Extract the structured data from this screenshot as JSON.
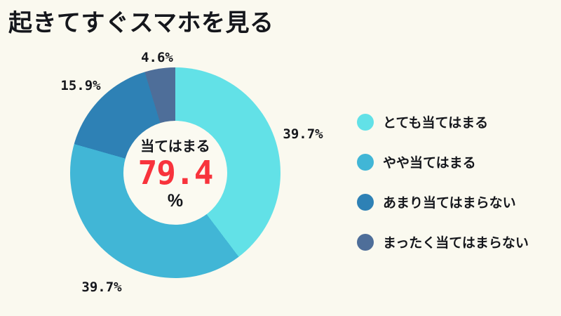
{
  "page": {
    "title": "起きてすぐスマホを見る",
    "background": "#FAF9EF"
  },
  "chart_data": {
    "type": "pie",
    "subtype": "donut",
    "title": "起きてすぐスマホを見る",
    "start_angle_deg": 0,
    "direction": "clockwise",
    "legend_position": "right",
    "segments": [
      {
        "label": "とても当てはまる",
        "value": 39.7,
        "display": "39.7%",
        "color": "#62E1E7"
      },
      {
        "label": "やや当てはまる",
        "value": 39.7,
        "display": "39.7%",
        "color": "#41B6D6"
      },
      {
        "label": "あまり当てはまらない",
        "value": 15.9,
        "display": "15.9%",
        "color": "#2E81B5"
      },
      {
        "label": "まったく当てはまらない",
        "value": 4.6,
        "display": "4.6%",
        "color": "#4E6E99"
      }
    ],
    "center": {
      "label": "当てはまる",
      "value": "79.4",
      "unit": "%",
      "value_color": "#F8333C"
    }
  }
}
